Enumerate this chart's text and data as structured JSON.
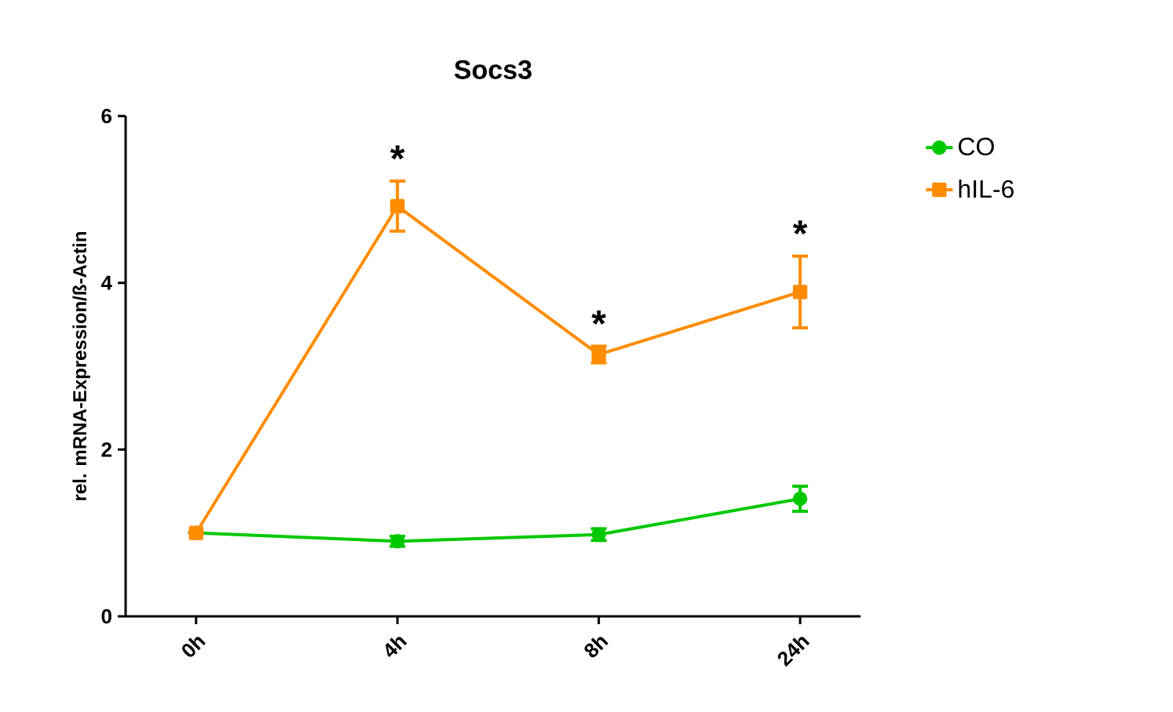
{
  "chart_data": {
    "type": "line",
    "title": "Socs3",
    "ylabel": "rel. mRNA-Expression/ß-Actin",
    "categories": [
      "0h",
      "4h",
      "8h",
      "24h"
    ],
    "ylim": [
      0,
      6
    ],
    "yticks": [
      0,
      2,
      4,
      6
    ],
    "legend": "right",
    "line_style": "solid",
    "grid": false,
    "series": [
      {
        "name": "CO",
        "color": "#00c800",
        "marker": "circle",
        "values": [
          1.0,
          0.9,
          0.98,
          1.41
        ],
        "errors": [
          null,
          0.06,
          0.07,
          0.15
        ]
      },
      {
        "name": "hIL-6",
        "color": "#ff8c00",
        "marker": "square",
        "values": [
          1.0,
          4.92,
          3.14,
          3.89
        ],
        "errors": [
          null,
          0.3,
          0.1,
          0.43
        ]
      }
    ],
    "annotations": [
      "*",
      "*",
      "*"
    ]
  }
}
